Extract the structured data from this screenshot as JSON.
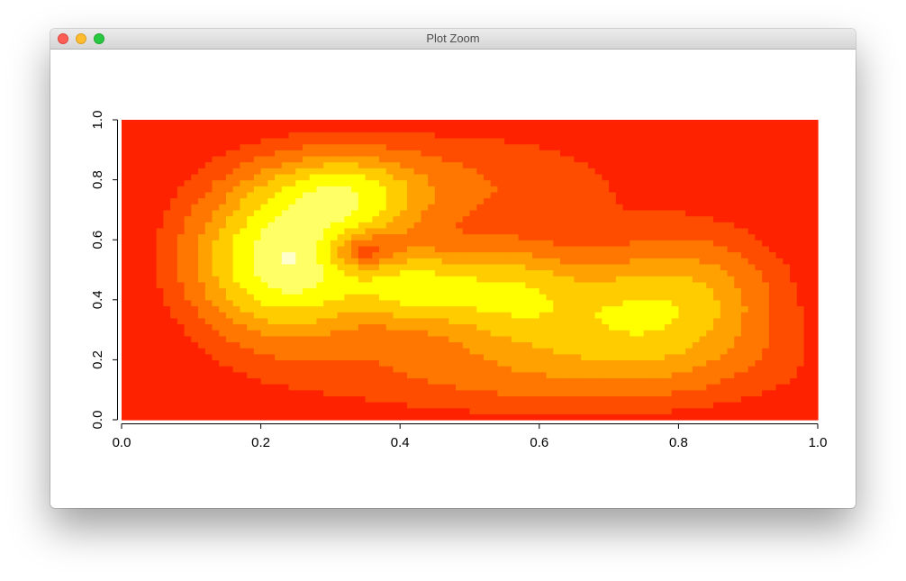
{
  "window": {
    "title": "Plot Zoom"
  },
  "chart_data": {
    "type": "heatmap",
    "title": "",
    "xlabel": "",
    "ylabel": "",
    "xlim": [
      0,
      1
    ],
    "ylim": [
      0,
      1
    ],
    "grid": false,
    "legend": "none",
    "x_ticks": [
      "0.0",
      "0.2",
      "0.4",
      "0.6",
      "0.8",
      "1.0"
    ],
    "y_ticks": [
      "0.0",
      "0.2",
      "0.4",
      "0.6",
      "0.8",
      "1.0"
    ],
    "palette": [
      "#ff2200",
      "#ff4d00",
      "#ff7700",
      "#ffa100",
      "#ffcc00",
      "#ffff00",
      "#ffff66",
      "#ffffcc"
    ],
    "description_levels": "heat.colors palette; low density red, high density pale yellow",
    "density_peaks": [
      {
        "x": 0.24,
        "y": 0.53,
        "level": 7
      },
      {
        "x": 0.32,
        "y": 0.75,
        "level": 6
      },
      {
        "x": 0.42,
        "y": 0.44,
        "level": 6
      },
      {
        "x": 0.55,
        "y": 0.42,
        "level": 5
      },
      {
        "x": 0.72,
        "y": 0.35,
        "level": 4
      }
    ],
    "local_minimum": {
      "x": 0.34,
      "y": 0.56,
      "level": 4
    }
  }
}
